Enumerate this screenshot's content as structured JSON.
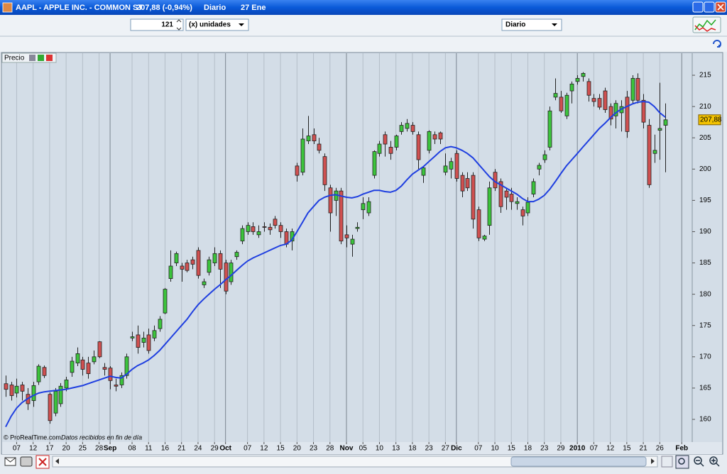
{
  "window": {
    "title": "AAPL - APPLE INC. - COMMON ST",
    "price": "207,88 (-0,94%)",
    "period": "Diario",
    "date": "27 Ene"
  },
  "toolbar": {
    "units_value": "121",
    "units_label": "(x) unidades",
    "timeframe": "Diario"
  },
  "panel": {
    "label": "Precio",
    "watermark": "© ProRealTime.com",
    "note": "Datos recibidos en fin de día"
  },
  "chart_data": {
    "type": "candlestick",
    "up_color": "#3cc43c",
    "down_color": "#d05050",
    "open": [
      165.7,
      165.5,
      164.2,
      165.5,
      164,
      163,
      166,
      168.3,
      164,
      161,
      162.5,
      165,
      167.5,
      169,
      169.5,
      169,
      169.2,
      172.4,
      168.3,
      168.2,
      165.5,
      165.5,
      167,
      173,
      173.5,
      172.3,
      173.5,
      173,
      174.5,
      177,
      182.5,
      185,
      184.5,
      185,
      185.5,
      187,
      181.5,
      183.5,
      185,
      186.5,
      185,
      182,
      186,
      188.5,
      190,
      190.8,
      189.5,
      190.8,
      190.7,
      192,
      191,
      190,
      188.5,
      200.5,
      199.5,
      204.5,
      205.5,
      204,
      202,
      197,
      195,
      196.5,
      189.5,
      188,
      190.5,
      193.5,
      193,
      199,
      202.5,
      205.5,
      203.5,
      203.5,
      206,
      206.5,
      207,
      205.5,
      199,
      203,
      205.5,
      205.8,
      199.5,
      200,
      202.5,
      199,
      198.5,
      199,
      193.5,
      188.8,
      191,
      199.5,
      198,
      196.5,
      196,
      194.5,
      193.5,
      193,
      196,
      200,
      201.5,
      203.5,
      211.5,
      211.5,
      208.5,
      212.5,
      214,
      214.8,
      214,
      211.3,
      211.3,
      212.5,
      210,
      208.5,
      209,
      211.5,
      211,
      214.5,
      211,
      207,
      202.5,
      206.2,
      207
    ],
    "high": [
      167,
      166,
      166.5,
      166,
      165,
      166,
      168.8,
      168.6,
      164.3,
      165,
      165.8,
      166.8,
      170,
      171.5,
      170,
      170,
      171,
      172.5,
      169,
      168.5,
      166.5,
      167.5,
      170.5,
      174,
      175,
      174,
      174.5,
      175,
      176.5,
      181,
      187,
      186.8,
      185,
      185.5,
      186,
      187.5,
      182.5,
      186,
      187.5,
      187,
      185.5,
      185.5,
      187,
      191,
      191.5,
      191.5,
      191,
      191.5,
      191.3,
      192.5,
      191.5,
      190.5,
      190.5,
      201,
      206.5,
      208.5,
      206.5,
      205,
      202.5,
      197.5,
      197,
      197,
      191,
      189.5,
      191.5,
      195.5,
      195.5,
      203,
      204.5,
      206,
      204.5,
      205.5,
      207.5,
      208,
      207.5,
      206,
      200.5,
      206.2,
      206,
      206,
      202.5,
      201.8,
      203,
      199.5,
      199.5,
      199.5,
      194,
      189.5,
      198,
      200,
      198.5,
      197,
      197,
      195.5,
      194,
      195.5,
      198.5,
      201,
      203,
      210,
      214.5,
      212.5,
      212.2,
      214,
      215,
      215.5,
      214.5,
      212,
      212,
      213,
      210.5,
      211,
      211,
      212.5,
      215,
      215.3,
      212,
      208,
      205.5,
      213.8,
      210.5
    ],
    "low": [
      163.6,
      163,
      163.5,
      163,
      161.5,
      162,
      165.5,
      166.6,
      159.3,
      160.5,
      162,
      164.5,
      166.8,
      168.5,
      167,
      166.5,
      168.8,
      169.8,
      167,
      164.8,
      164.5,
      165,
      166.5,
      172.5,
      170.5,
      171.5,
      170.5,
      172.5,
      174,
      176.8,
      182,
      184.5,
      182,
      183.5,
      184,
      182.5,
      181,
      183,
      184.5,
      181,
      180,
      181.5,
      185.5,
      188,
      189.5,
      189.5,
      189,
      190,
      189.5,
      190.5,
      189,
      187.5,
      187,
      198,
      199,
      204,
      204,
      202.5,
      196.5,
      190,
      192.5,
      188,
      187.5,
      186,
      190,
      192,
      192.5,
      198.5,
      202,
      202,
      201.5,
      203,
      205.5,
      206,
      205.5,
      200,
      197.8,
      202.5,
      204,
      204,
      199,
      198.5,
      198,
      195.5,
      196.5,
      190.5,
      188.5,
      188.5,
      189.5,
      196.5,
      193,
      193.5,
      193.5,
      193.5,
      191,
      192.5,
      195.5,
      199,
      201,
      203,
      211,
      209,
      208,
      210.5,
      213.5,
      214,
      210.8,
      210,
      209.5,
      209,
      207,
      206.5,
      206,
      205,
      210.5,
      210.5,
      206.5,
      197,
      201,
      201.5,
      199.5
    ],
    "close": [
      164.8,
      163.8,
      165.3,
      164.5,
      162.5,
      165.4,
      168.5,
      167,
      159.8,
      164.5,
      165.3,
      166.3,
      169.3,
      170.5,
      168,
      167.3,
      170,
      170,
      168,
      166.2,
      165.3,
      167,
      170,
      173.2,
      171.5,
      173,
      171,
      174.2,
      176,
      180.8,
      184.5,
      186.5,
      184,
      183.8,
      184.8,
      183,
      182,
      185.5,
      186.5,
      184,
      180.5,
      185,
      186.7,
      190.5,
      191,
      190,
      190,
      190.7,
      190.3,
      191,
      190,
      188,
      190,
      199,
      204.8,
      205.3,
      204.5,
      203,
      197.5,
      193,
      196.5,
      188.5,
      189,
      188.8,
      190.7,
      194.5,
      194.8,
      202.8,
      204,
      204,
      202.5,
      205.3,
      207,
      207.3,
      206,
      201.5,
      200.2,
      206,
      204.8,
      204.8,
      200.5,
      201.2,
      198.5,
      196.5,
      197,
      192,
      189,
      189.3,
      197,
      197,
      194,
      195.5,
      194.8,
      194.8,
      192.5,
      194.7,
      198,
      200.6,
      202.3,
      209.3,
      212.1,
      209.3,
      211.8,
      213.6,
      214.5,
      215.3,
      211.8,
      210.8,
      209.9,
      209.5,
      208,
      210.5,
      210,
      206,
      214.5,
      211,
      207.5,
      197.5,
      203,
      206.5,
      207.88
    ],
    "moving_average": {
      "color": "#1f3fe0",
      "values": [
        158.8,
        160.5,
        161.8,
        162.7,
        163.3,
        163.8,
        164.2,
        164.4,
        164.5,
        164.6,
        164.7,
        164.8,
        165,
        165.2,
        165.4,
        165.7,
        166,
        166.3,
        166.6,
        166.9,
        166.7,
        166.6,
        167.2,
        168,
        168.6,
        169,
        169.5,
        170.2,
        171,
        172,
        173,
        174,
        175,
        176,
        177.2,
        178.3,
        179.2,
        180,
        180.8,
        181.5,
        182.3,
        183,
        183.8,
        184.6,
        185.3,
        185.8,
        186.2,
        186.6,
        187,
        187.4,
        187.8,
        188,
        188.6,
        190,
        191.5,
        193,
        194,
        195,
        195.5,
        195.8,
        195.9,
        195.7,
        195.5,
        195.4,
        195.6,
        196,
        196.3,
        196.6,
        196.6,
        196.4,
        196.3,
        196.6,
        197.3,
        198.3,
        199.2,
        199.8,
        200.4,
        201.2,
        202,
        202.8,
        203.4,
        203.6,
        203.4,
        203,
        202.5,
        201.8,
        200.8,
        199.8,
        198.8,
        198,
        197.5,
        197,
        196.5,
        196,
        195.3,
        194.8,
        194.8,
        195.2,
        195.8,
        196.8,
        198,
        199.3,
        200.5,
        201.5,
        202.5,
        203.5,
        204.5,
        205.5,
        206.5,
        207.3,
        208.2,
        209,
        209.6,
        210,
        210.4,
        210.7,
        210.8,
        210.7,
        210,
        209,
        208.3
      ]
    },
    "last_label": {
      "value": 207.88,
      "label": "207,88"
    },
    "ylim": [
      156.37,
      218.52
    ],
    "yticks": [
      160,
      165,
      170,
      175,
      180,
      185,
      190,
      195,
      200,
      205,
      210,
      215
    ],
    "xlim": [
      -0.64,
      124.9
    ],
    "xticks": [
      {
        "value": 2,
        "label": "07"
      },
      {
        "value": 5,
        "label": "12"
      },
      {
        "value": 8,
        "label": "17"
      },
      {
        "value": 11,
        "label": "20"
      },
      {
        "value": 14,
        "label": "25"
      },
      {
        "value": 17,
        "label": "28"
      },
      {
        "value": 19,
        "label": "Sep",
        "major": true
      },
      {
        "value": 23,
        "label": "08"
      },
      {
        "value": 26,
        "label": "11"
      },
      {
        "value": 29,
        "label": "16"
      },
      {
        "value": 32,
        "label": "21"
      },
      {
        "value": 35,
        "label": "24"
      },
      {
        "value": 38,
        "label": "29"
      },
      {
        "value": 40,
        "label": "Oct",
        "major": true
      },
      {
        "value": 44,
        "label": "07"
      },
      {
        "value": 47,
        "label": "12"
      },
      {
        "value": 50,
        "label": "15"
      },
      {
        "value": 53,
        "label": "20"
      },
      {
        "value": 56,
        "label": "23"
      },
      {
        "value": 59,
        "label": "28"
      },
      {
        "value": 62,
        "label": "Nov",
        "major": true
      },
      {
        "value": 65,
        "label": "05"
      },
      {
        "value": 68,
        "label": "10"
      },
      {
        "value": 71,
        "label": "13"
      },
      {
        "value": 74,
        "label": "18"
      },
      {
        "value": 77,
        "label": "23"
      },
      {
        "value": 80,
        "label": "27"
      },
      {
        "value": 82,
        "label": "Dic",
        "major": true
      },
      {
        "value": 86,
        "label": "07"
      },
      {
        "value": 89,
        "label": "10"
      },
      {
        "value": 92,
        "label": "15"
      },
      {
        "value": 95,
        "label": "18"
      },
      {
        "value": 98,
        "label": "23"
      },
      {
        "value": 101,
        "label": "29"
      },
      {
        "value": 104,
        "label": "2010",
        "major": true
      },
      {
        "value": 107,
        "label": "07"
      },
      {
        "value": 110,
        "label": "12"
      },
      {
        "value": 113,
        "label": "15"
      },
      {
        "value": 116,
        "label": "21"
      },
      {
        "value": 119,
        "label": "26"
      },
      {
        "value": 123,
        "label": "Feb",
        "major": true
      }
    ],
    "grid": true
  }
}
